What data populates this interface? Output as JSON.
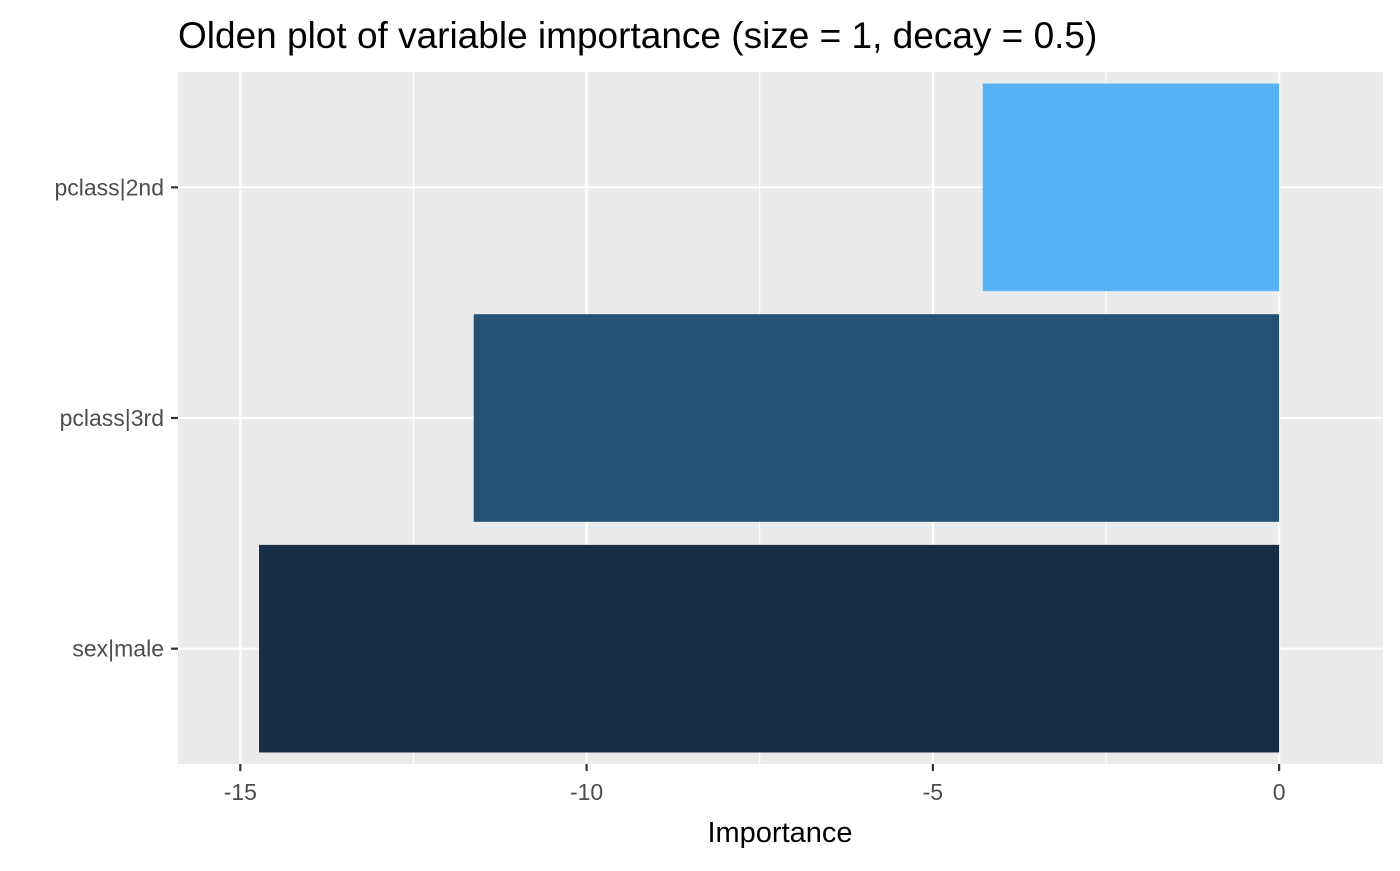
{
  "chart_data": {
    "type": "bar",
    "orientation": "horizontal",
    "title": "Olden plot of variable importance (size = 1, decay = 0.5)",
    "xlabel": "Importance",
    "ylabel": "",
    "categories": [
      "pclass|2nd",
      "pclass|3rd",
      "sex|male"
    ],
    "values": [
      -4.28,
      -11.63,
      -14.73
    ],
    "bar_colors": [
      "#56b1f7",
      "#255174",
      "#172d45"
    ],
    "xlim": [
      -15.9,
      1.5
    ],
    "x_ticks": [
      -15,
      -10,
      -5,
      0
    ],
    "x_tick_labels": [
      "-15",
      "-10",
      "-5",
      "0"
    ],
    "grid": true,
    "legend": "none",
    "panel_background": "#ebebeb",
    "grid_color": "#ffffff"
  }
}
